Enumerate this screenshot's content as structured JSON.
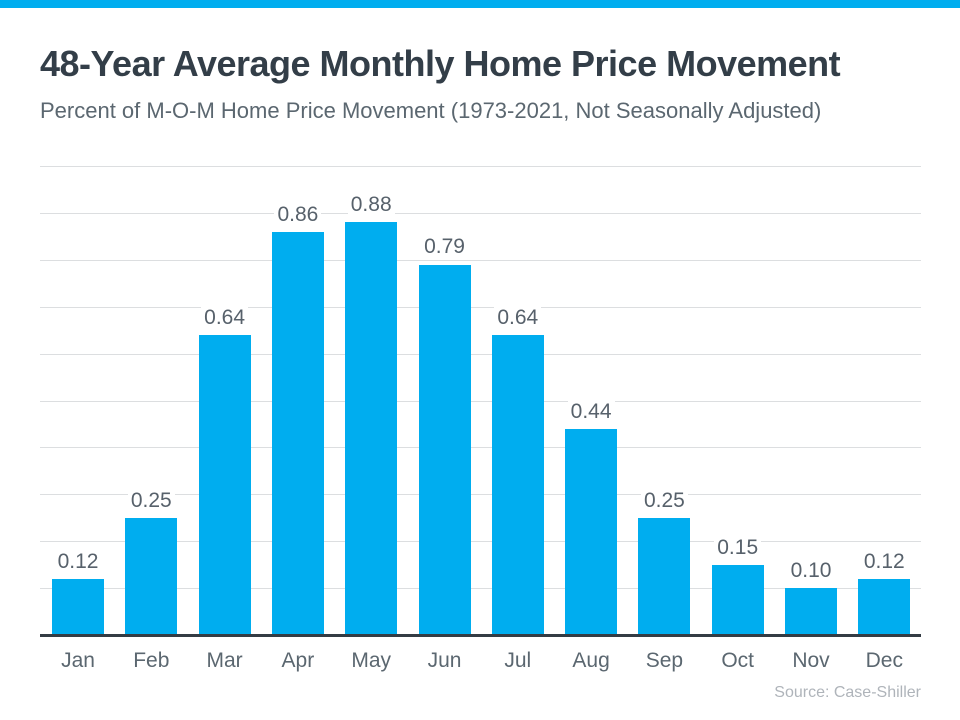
{
  "page": {
    "background_color": "#FFFFFF",
    "accent_color": "#00ADEF"
  },
  "header": {
    "title": "48-Year Average Monthly Home Price Movement",
    "subtitle": "Percent of M-O-M Home Price Movement (1973-2021, Not Seasonally Adjusted)"
  },
  "chart_data": {
    "type": "bar",
    "title": "48-Year Average Monthly Home Price Movement",
    "subtitle": "Percent of M-O-M Home Price Movement (1973-2021, Not Seasonally Adjusted)",
    "categories": [
      "Jan",
      "Feb",
      "Mar",
      "Apr",
      "May",
      "Jun",
      "Jul",
      "Aug",
      "Sep",
      "Oct",
      "Nov",
      "Dec"
    ],
    "values": [
      0.12,
      0.25,
      0.64,
      0.86,
      0.88,
      0.79,
      0.64,
      0.44,
      0.25,
      0.15,
      0.1,
      0.12
    ],
    "value_labels": [
      "0.12",
      "0.25",
      "0.64",
      "0.86",
      "0.88",
      "0.79",
      "0.64",
      "0.44",
      "0.25",
      "0.15",
      "0.10",
      "0.12"
    ],
    "xlabel": "",
    "ylabel": "",
    "ylim": [
      0,
      1.0
    ],
    "gridline_step": 0.1,
    "grid": true,
    "y_tick_labels_shown": false,
    "legend": "none",
    "bar_color": "#00ADEF",
    "gridline_color": "#DCDEE0",
    "axis_line_color": "#343C44",
    "label_color": "#57616B"
  },
  "footer": {
    "source": "Source: Case-Shiller"
  }
}
